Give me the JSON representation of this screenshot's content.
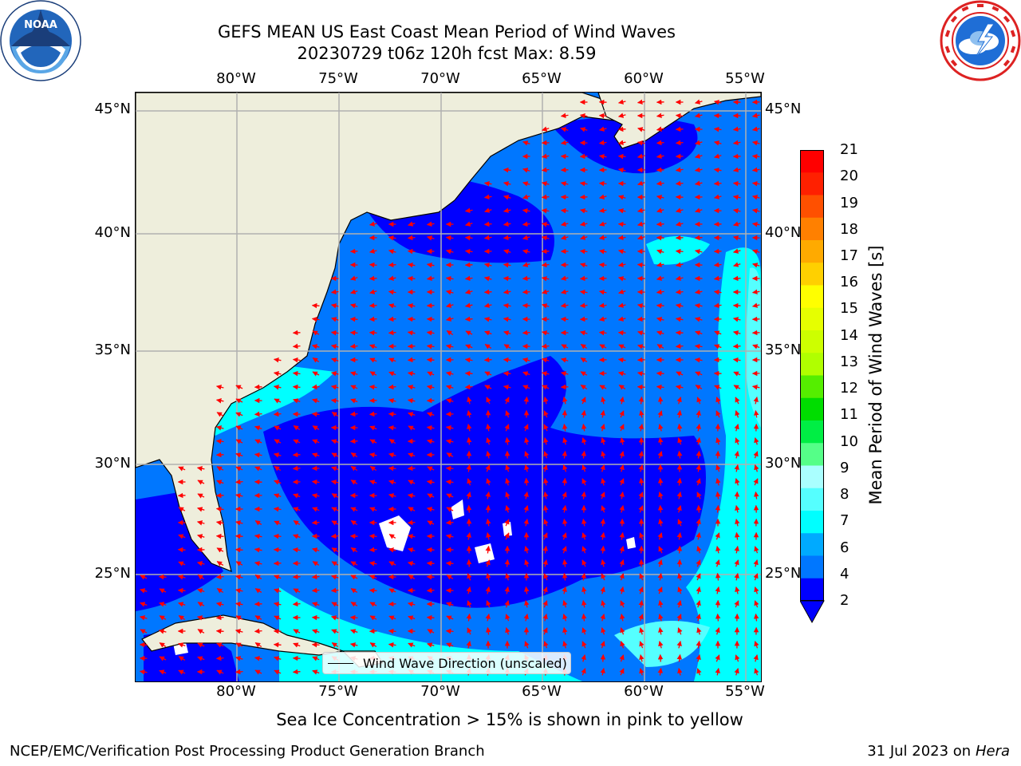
{
  "title": {
    "line1": "GEFS MEAN US East Coast Mean Period of Wind Waves",
    "line2": "20230729 t06z 120h fcst   Max: 8.59"
  },
  "logos": {
    "left": "noaa-logo",
    "left_text": "NOAA",
    "right": "national-weather-service-logo"
  },
  "map": {
    "lon_labels_top": [
      "80°W",
      "75°W",
      "70°W",
      "65°W",
      "60°W",
      "55°W"
    ],
    "lon_labels_bottom": [
      "80°W",
      "75°W",
      "70°W",
      "65°W",
      "60°W",
      "55°W"
    ],
    "lat_labels_left": [
      "45°N",
      "40°N",
      "35°N",
      "30°N",
      "25°N"
    ],
    "lat_labels_right": [
      "45°N",
      "40°N",
      "35°N",
      "30°N",
      "25°N"
    ],
    "lon_range": [
      -85,
      -54.2
    ],
    "lat_range": [
      20.5,
      46
    ],
    "colors": {
      "land": "#eeeedc",
      "grid": "#b0b0b0",
      "arrows": "#ff0000",
      "coast": "#000000",
      "sea_ice_mask": "#ffffff"
    },
    "legend_label": "Wind Wave Direction (unscaled)"
  },
  "colorbar": {
    "label": "Mean Period of Wind Waves [s]",
    "ticks": [
      "21",
      "20",
      "19",
      "18",
      "17",
      "16",
      "15",
      "14",
      "13",
      "12",
      "11",
      "10",
      "9",
      "8",
      "7",
      "6",
      "4",
      "2"
    ],
    "colors": [
      "#ff0000",
      "#ff2000",
      "#ff5000",
      "#ff8000",
      "#ffaa00",
      "#ffd000",
      "#ffff00",
      "#e6ff00",
      "#cdff00",
      "#b0ff00",
      "#55ee00",
      "#00dd00",
      "#00ee44",
      "#55ff88",
      "#aaffff",
      "#55ffff",
      "#00ffff",
      "#00aaff",
      "#0077ff",
      "#0000ff"
    ],
    "extend": "min"
  },
  "footer": {
    "ice_note": "Sea Ice Concentration > 15% is shown in pink to yellow",
    "credit": "NCEP/EMC/Verification Post Processing Product Generation Branch",
    "date_prefix": "31 Jul 2023 on ",
    "machine": "Hera"
  }
}
